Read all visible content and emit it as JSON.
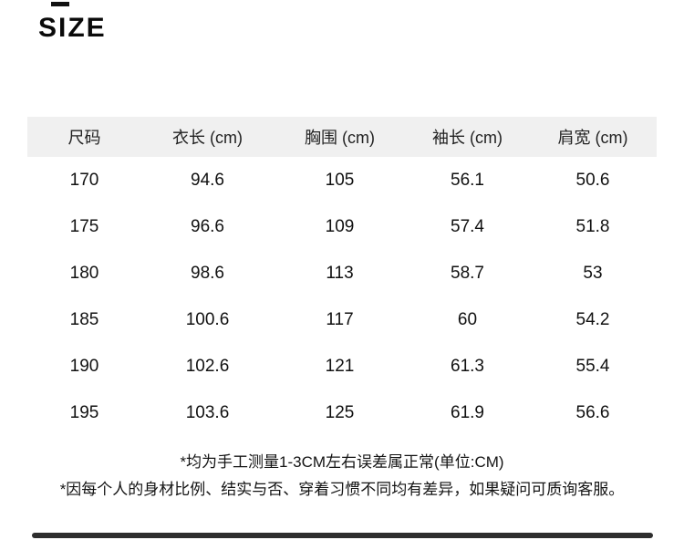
{
  "page": {
    "title": "SIZE"
  },
  "table": {
    "headers": [
      "尺码",
      "衣长 (cm)",
      "胸围 (cm)",
      "袖长 (cm)",
      "肩宽 (cm)"
    ],
    "rows": [
      [
        "170",
        "94.6",
        "105",
        "56.1",
        "50.6"
      ],
      [
        "175",
        "96.6",
        "109",
        "57.4",
        "51.8"
      ],
      [
        "180",
        "98.6",
        "113",
        "58.7",
        "53"
      ],
      [
        "185",
        "100.6",
        "117",
        "60",
        "54.2"
      ],
      [
        "190",
        "102.6",
        "121",
        "61.3",
        "55.4"
      ],
      [
        "195",
        "103.6",
        "125",
        "61.9",
        "56.6"
      ]
    ]
  },
  "notes": [
    "*均为手工测量1-3CM左右误差属正常(单位:CM)",
    "*因每个人的身材比例、结实与否、穿着习惯不同均有差异，如果疑问可质询客服。"
  ],
  "colors": {
    "header_band": "#f0f0f0",
    "text": "#111111",
    "divider": "#2e2e2e"
  }
}
